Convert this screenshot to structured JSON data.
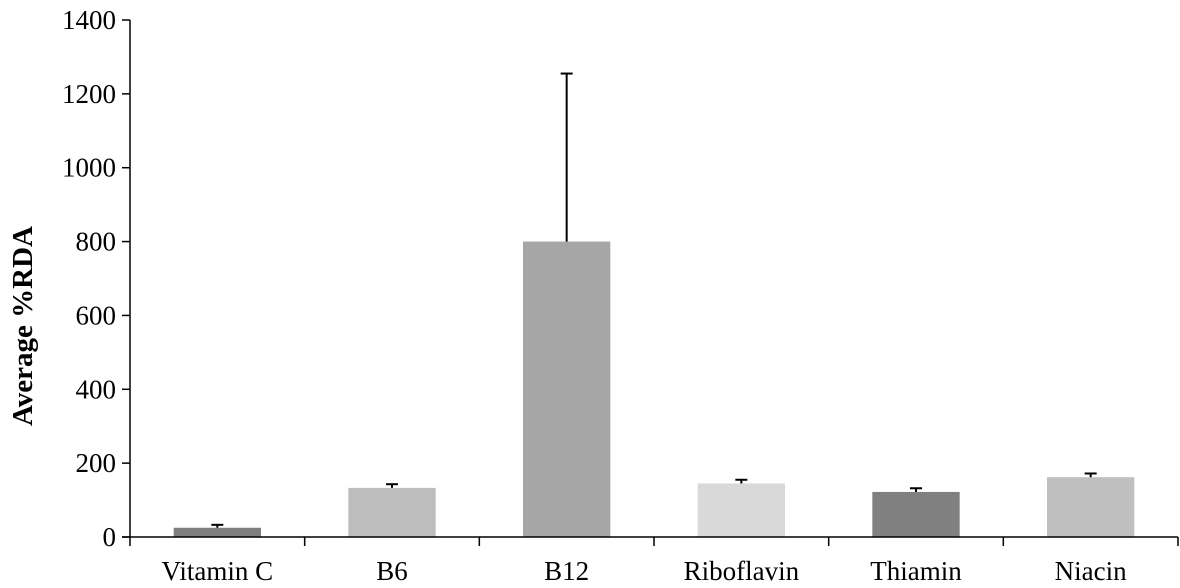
{
  "chart_data": {
    "type": "bar",
    "title": "",
    "xlabel": "",
    "ylabel": "Average %RDA",
    "ylim": [
      0,
      1400
    ],
    "yticks": [
      0,
      200,
      400,
      600,
      800,
      1000,
      1200,
      1400
    ],
    "grid": false,
    "legend": "none",
    "categories": [
      "Vitamin C",
      "B6",
      "B12",
      "Riboflavin",
      "Thiamin",
      "Niacin"
    ],
    "values": [
      25,
      133,
      800,
      145,
      122,
      162
    ],
    "error_upper": [
      8,
      10,
      455,
      10,
      10,
      10
    ],
    "colors": [
      "#7f7f7f",
      "#bdbdbd",
      "#a6a6a6",
      "#d9d9d9",
      "#808080",
      "#bfbfbf"
    ]
  }
}
